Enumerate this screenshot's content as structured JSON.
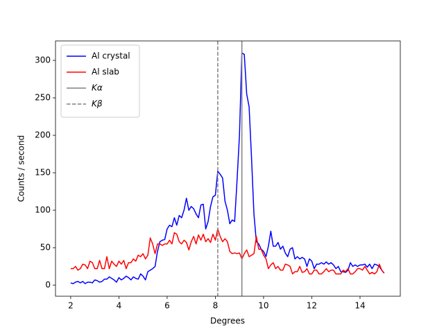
{
  "chart_data": {
    "type": "line",
    "xlabel": "Degrees",
    "ylabel": "Counts / second",
    "x": [
      2.0,
      2.1,
      2.2,
      2.3,
      2.4,
      2.5,
      2.6,
      2.7,
      2.8,
      2.9,
      3.0,
      3.1,
      3.2,
      3.3,
      3.4,
      3.5,
      3.6,
      3.7,
      3.8,
      3.9,
      4.0,
      4.1,
      4.2,
      4.3,
      4.4,
      4.5,
      4.6,
      4.7,
      4.8,
      4.9,
      5.0,
      5.1,
      5.2,
      5.3,
      5.4,
      5.5,
      5.6,
      5.7,
      5.8,
      5.9,
      6.0,
      6.1,
      6.2,
      6.3,
      6.4,
      6.5,
      6.6,
      6.7,
      6.8,
      6.9,
      7.0,
      7.1,
      7.2,
      7.3,
      7.4,
      7.5,
      7.6,
      7.7,
      7.8,
      7.9,
      8.0,
      8.1,
      8.2,
      8.3,
      8.4,
      8.5,
      8.6,
      8.7,
      8.8,
      8.9,
      9.0,
      9.1,
      9.2,
      9.3,
      9.4,
      9.5,
      9.6,
      9.7,
      9.8,
      9.9,
      10.0,
      10.1,
      10.2,
      10.3,
      10.4,
      10.5,
      10.6,
      10.7,
      10.8,
      10.9,
      11.0,
      11.1,
      11.2,
      11.3,
      11.4,
      11.5,
      11.6,
      11.7,
      11.8,
      11.9,
      12.0,
      12.1,
      12.2,
      12.3,
      12.4,
      12.5,
      12.6,
      12.7,
      12.8,
      12.9,
      13.0,
      13.1,
      13.2,
      13.3,
      13.4,
      13.5,
      13.6,
      13.7,
      13.8,
      13.9,
      14.0,
      14.1,
      14.2,
      14.3,
      14.4,
      14.5,
      14.6,
      14.7,
      14.8,
      14.9,
      15.0
    ],
    "series": [
      {
        "name": "Al crystal",
        "color": "#0000ff",
        "values": [
          3,
          2,
          4,
          5,
          3,
          5,
          2,
          4,
          4,
          3,
          7,
          6,
          4,
          5,
          8,
          8,
          11,
          9,
          7,
          4,
          10,
          7,
          9,
          12,
          10,
          7,
          11,
          9,
          8,
          15,
          12,
          7,
          18,
          20,
          22,
          25,
          45,
          58,
          60,
          61,
          75,
          80,
          78,
          90,
          80,
          93,
          90,
          100,
          116,
          100,
          105,
          102,
          95,
          90,
          107,
          108,
          75,
          85,
          105,
          118,
          120,
          152,
          148,
          143,
          112,
          100,
          82,
          87,
          85,
          140,
          200,
          310,
          308,
          255,
          238,
          170,
          95,
          58,
          55,
          48,
          45,
          38,
          52,
          72,
          52,
          52,
          57,
          48,
          52,
          43,
          38,
          48,
          50,
          35,
          38,
          35,
          37,
          35,
          25,
          35,
          32,
          22,
          28,
          28,
          30,
          28,
          31,
          28,
          30,
          27,
          22,
          25,
          18,
          18,
          17,
          20,
          30,
          25,
          27,
          25,
          27,
          27,
          28,
          24,
          28,
          22,
          28,
          27,
          25,
          20,
          16
        ]
      },
      {
        "name": "Al slab",
        "color": "#ff0000",
        "values": [
          22,
          22,
          25,
          20,
          22,
          28,
          27,
          22,
          32,
          30,
          22,
          22,
          33,
          22,
          22,
          38,
          22,
          32,
          28,
          25,
          32,
          28,
          33,
          22,
          30,
          30,
          35,
          32,
          40,
          38,
          42,
          35,
          40,
          63,
          55,
          42,
          55,
          55,
          53,
          55,
          55,
          60,
          55,
          70,
          68,
          58,
          55,
          60,
          57,
          47,
          58,
          65,
          55,
          67,
          60,
          68,
          58,
          62,
          57,
          68,
          60,
          75,
          65,
          58,
          62,
          58,
          45,
          42,
          43,
          42,
          43,
          35,
          42,
          47,
          38,
          40,
          42,
          65,
          48,
          48,
          40,
          35,
          22,
          27,
          30,
          22,
          25,
          20,
          20,
          28,
          27,
          25,
          15,
          18,
          18,
          25,
          17,
          18,
          22,
          15,
          15,
          20,
          20,
          15,
          15,
          18,
          22,
          18,
          20,
          20,
          15,
          15,
          15,
          20,
          18,
          22,
          15,
          15,
          18,
          22,
          22,
          20,
          25,
          20,
          15,
          17,
          15,
          18,
          28,
          20,
          16
        ]
      }
    ],
    "vlines": [
      {
        "name": "Kα",
        "x": 9.1,
        "color": "#808080",
        "style": "solid"
      },
      {
        "name": "Kβ",
        "x": 8.1,
        "color": "#808080",
        "style": "dashed"
      }
    ],
    "xlim": [
      1.37,
      15.67
    ],
    "ylim": [
      -14.8,
      326
    ],
    "xticks": [
      2,
      4,
      6,
      8,
      10,
      12,
      14
    ],
    "yticks": [
      0,
      50,
      100,
      150,
      200,
      250,
      300
    ],
    "legend": "upper left"
  }
}
